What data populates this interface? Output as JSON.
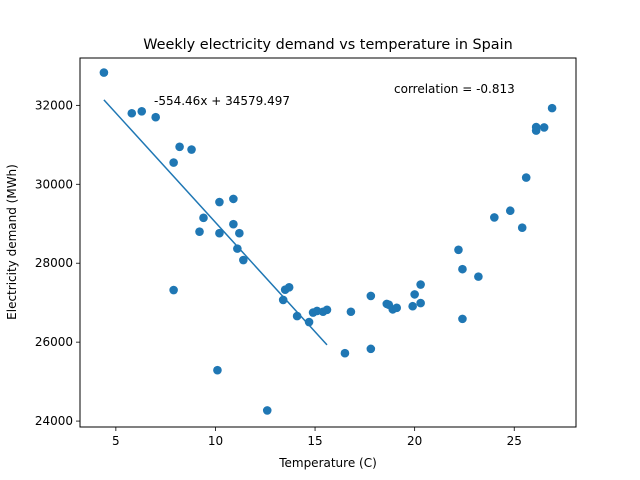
{
  "chart_data": {
    "type": "scatter",
    "title": "Weekly electricity demand vs temperature in Spain",
    "xlabel": "Temperature (C)",
    "ylabel": "Electricity demand (MWh)",
    "xlim": [
      3.2,
      28.1
    ],
    "ylim": [
      23850,
      33200
    ],
    "xticks": [
      5,
      10,
      15,
      20,
      25
    ],
    "yticks": [
      24000,
      26000,
      28000,
      30000,
      32000
    ],
    "grid": false,
    "point_color": "#1f77b4",
    "line_color": "#1f77b4",
    "points": [
      {
        "x": 4.4,
        "y": 32830
      },
      {
        "x": 5.8,
        "y": 31800
      },
      {
        "x": 6.3,
        "y": 31850
      },
      {
        "x": 7.0,
        "y": 31700
      },
      {
        "x": 7.9,
        "y": 30550
      },
      {
        "x": 8.2,
        "y": 30950
      },
      {
        "x": 8.8,
        "y": 30880
      },
      {
        "x": 7.9,
        "y": 27320
      },
      {
        "x": 9.2,
        "y": 28800
      },
      {
        "x": 9.4,
        "y": 29150
      },
      {
        "x": 10.2,
        "y": 29550
      },
      {
        "x": 10.2,
        "y": 28760
      },
      {
        "x": 10.9,
        "y": 29630
      },
      {
        "x": 10.9,
        "y": 28990
      },
      {
        "x": 11.1,
        "y": 28370
      },
      {
        "x": 11.2,
        "y": 28760
      },
      {
        "x": 11.4,
        "y": 28080
      },
      {
        "x": 10.1,
        "y": 25290
      },
      {
        "x": 12.6,
        "y": 24270
      },
      {
        "x": 13.4,
        "y": 27070
      },
      {
        "x": 13.5,
        "y": 27330
      },
      {
        "x": 13.7,
        "y": 27390
      },
      {
        "x": 14.1,
        "y": 26660
      },
      {
        "x": 14.7,
        "y": 26510
      },
      {
        "x": 14.9,
        "y": 26750
      },
      {
        "x": 15.1,
        "y": 26790
      },
      {
        "x": 15.4,
        "y": 26770
      },
      {
        "x": 15.6,
        "y": 26820
      },
      {
        "x": 16.5,
        "y": 25720
      },
      {
        "x": 16.8,
        "y": 26770
      },
      {
        "x": 17.8,
        "y": 27170
      },
      {
        "x": 17.8,
        "y": 25830
      },
      {
        "x": 18.6,
        "y": 26970
      },
      {
        "x": 18.7,
        "y": 26950
      },
      {
        "x": 18.9,
        "y": 26830
      },
      {
        "x": 19.1,
        "y": 26870
      },
      {
        "x": 19.9,
        "y": 26910
      },
      {
        "x": 20.0,
        "y": 27210
      },
      {
        "x": 20.3,
        "y": 26990
      },
      {
        "x": 20.3,
        "y": 27460
      },
      {
        "x": 22.2,
        "y": 28340
      },
      {
        "x": 22.4,
        "y": 27850
      },
      {
        "x": 22.4,
        "y": 26590
      },
      {
        "x": 23.2,
        "y": 27660
      },
      {
        "x": 24.0,
        "y": 29160
      },
      {
        "x": 24.8,
        "y": 29330
      },
      {
        "x": 25.4,
        "y": 28900
      },
      {
        "x": 25.6,
        "y": 30170
      },
      {
        "x": 26.1,
        "y": 31360
      },
      {
        "x": 26.1,
        "y": 31450
      },
      {
        "x": 26.5,
        "y": 31440
      },
      {
        "x": 26.9,
        "y": 31930
      }
    ],
    "regression": {
      "slope": -554.46,
      "intercept": 34579.497,
      "x_start": 4.4,
      "x_end": 15.6
    },
    "annotations": {
      "equation": "-554.46x + 34579.497",
      "correlation": "correlation = -0.813"
    }
  }
}
